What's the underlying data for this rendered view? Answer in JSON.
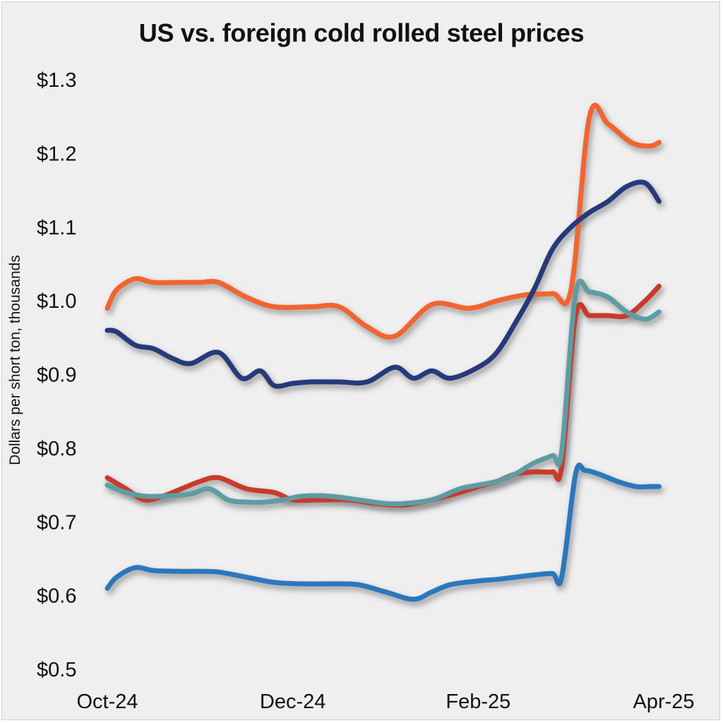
{
  "chart_data": {
    "type": "line",
    "title": "US vs. foreign cold rolled steel prices",
    "ylabel": "Dollars per short ton, thousands",
    "xlabel": "",
    "ylim": [
      0.5,
      1.3
    ],
    "yticks": [
      "$0.5",
      "$0.6",
      "$0.7",
      "$0.8",
      "$0.9",
      "$1.0",
      "$1.1",
      "$1.2",
      "$1.3"
    ],
    "ytick_values": [
      0.5,
      0.6,
      0.7,
      0.8,
      0.9,
      1.0,
      1.1,
      1.2,
      1.3
    ],
    "xticks": [
      "Oct-24",
      "Dec-24",
      "Feb-25",
      "Apr-25"
    ],
    "xtick_positions": [
      0,
      2,
      4,
      6
    ],
    "xlim": [
      0,
      6
    ],
    "grid": false,
    "legend": "none",
    "series": [
      {
        "color": "#f26430",
        "x": [
          0,
          0.1,
          0.3,
          0.5,
          0.8,
          1.0,
          1.2,
          1.5,
          1.8,
          2.2,
          2.5,
          2.8,
          3.1,
          3.5,
          3.9,
          4.2,
          4.5,
          4.8,
          5.0,
          5.2,
          5.4,
          5.65,
          5.85,
          5.95
        ],
        "y": [
          0.99,
          1.015,
          1.03,
          1.025,
          1.025,
          1.025,
          1.025,
          1.005,
          0.992,
          0.992,
          0.992,
          0.965,
          0.952,
          0.995,
          0.99,
          1.0,
          1.008,
          1.01,
          1.015,
          1.25,
          1.24,
          1.215,
          1.21,
          1.215
        ]
      },
      {
        "color": "#263a7a",
        "x": [
          0,
          0.1,
          0.3,
          0.5,
          0.7,
          0.9,
          1.2,
          1.45,
          1.65,
          1.8,
          2.0,
          2.2,
          2.5,
          2.8,
          3.1,
          3.3,
          3.5,
          3.7,
          4.0,
          4.2,
          4.4,
          4.6,
          4.8,
          5.0,
          5.2,
          5.4,
          5.6,
          5.8,
          5.95
        ],
        "y": [
          0.96,
          0.958,
          0.94,
          0.935,
          0.922,
          0.915,
          0.93,
          0.895,
          0.905,
          0.885,
          0.888,
          0.89,
          0.89,
          0.89,
          0.91,
          0.895,
          0.905,
          0.895,
          0.91,
          0.93,
          0.97,
          1.015,
          1.07,
          1.1,
          1.12,
          1.135,
          1.155,
          1.16,
          1.135
        ]
      },
      {
        "color": "#c93a2a",
        "x": [
          0,
          0.2,
          0.4,
          0.6,
          0.8,
          1.0,
          1.2,
          1.5,
          1.8,
          2.0,
          2.3,
          2.6,
          2.9,
          3.2,
          3.5,
          3.8,
          4.0,
          4.2,
          4.4,
          4.6,
          4.8,
          4.9,
          5.05,
          5.2,
          5.4,
          5.6,
          5.8,
          5.95
        ],
        "y": [
          0.76,
          0.745,
          0.73,
          0.735,
          0.745,
          0.755,
          0.76,
          0.745,
          0.74,
          0.73,
          0.73,
          0.73,
          0.725,
          0.723,
          0.73,
          0.74,
          0.748,
          0.755,
          0.765,
          0.768,
          0.768,
          0.775,
          0.98,
          0.98,
          0.98,
          0.98,
          1.0,
          1.02
        ]
      },
      {
        "color": "#5e9ca3",
        "x": [
          0,
          0.2,
          0.4,
          0.6,
          0.9,
          1.1,
          1.3,
          1.5,
          1.7,
          1.9,
          2.1,
          2.4,
          2.7,
          3.0,
          3.2,
          3.5,
          3.8,
          4.0,
          4.2,
          4.4,
          4.6,
          4.8,
          4.9,
          5.05,
          5.2,
          5.4,
          5.6,
          5.8,
          5.95
        ],
        "y": [
          0.75,
          0.74,
          0.735,
          0.735,
          0.738,
          0.745,
          0.73,
          0.727,
          0.727,
          0.73,
          0.735,
          0.735,
          0.73,
          0.725,
          0.725,
          0.73,
          0.745,
          0.75,
          0.755,
          0.765,
          0.78,
          0.79,
          0.795,
          1.01,
          1.012,
          1.005,
          0.985,
          0.975,
          0.985
        ]
      },
      {
        "color": "#2a78bc",
        "x": [
          0,
          0.1,
          0.3,
          0.5,
          0.8,
          1.0,
          1.2,
          1.5,
          1.8,
          2.1,
          2.4,
          2.7,
          3.0,
          3.3,
          3.5,
          3.7,
          4.0,
          4.2,
          4.4,
          4.6,
          4.8,
          4.9,
          5.05,
          5.15,
          5.3,
          5.5,
          5.7,
          5.85,
          5.95
        ],
        "y": [
          0.61,
          0.625,
          0.638,
          0.634,
          0.633,
          0.633,
          0.632,
          0.625,
          0.618,
          0.616,
          0.616,
          0.615,
          0.605,
          0.595,
          0.605,
          0.615,
          0.62,
          0.622,
          0.625,
          0.628,
          0.63,
          0.625,
          0.765,
          0.77,
          0.765,
          0.755,
          0.748,
          0.748,
          0.748
        ]
      }
    ]
  }
}
